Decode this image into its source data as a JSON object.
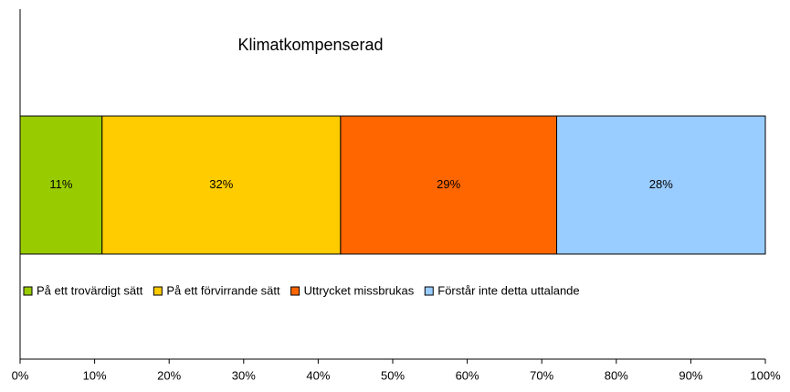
{
  "chart_data": {
    "type": "bar",
    "orientation": "horizontal",
    "stacked": true,
    "title": "Klimatkompenserad",
    "categories": [
      null
    ],
    "series": [
      {
        "name": "På ett trovärdigt sätt",
        "color": "#99cc00",
        "values": [
          11
        ],
        "value_labels": [
          "11%"
        ]
      },
      {
        "name": "På ett förvirrande sätt",
        "color": "#ffcc00",
        "values": [
          32
        ],
        "value_labels": [
          "32%"
        ]
      },
      {
        "name": "Uttrycket missbrukas",
        "color": "#ff6600",
        "values": [
          29
        ],
        "value_labels": [
          "29%"
        ]
      },
      {
        "name": "Förstår inte detta uttalande",
        "color": "#99ccff",
        "values": [
          28
        ],
        "value_labels": [
          "28%"
        ]
      }
    ],
    "xlim": [
      0,
      100
    ],
    "xticks": [
      {
        "value": 0,
        "label": "0%"
      },
      {
        "value": 10,
        "label": "10%"
      },
      {
        "value": 20,
        "label": "20%"
      },
      {
        "value": 30,
        "label": "30%"
      },
      {
        "value": 40,
        "label": "40%"
      },
      {
        "value": 50,
        "label": "50%"
      },
      {
        "value": 60,
        "label": "60%"
      },
      {
        "value": 70,
        "label": "70%"
      },
      {
        "value": 80,
        "label": "80%"
      },
      {
        "value": 90,
        "label": "90%"
      },
      {
        "value": 100,
        "label": "100%"
      }
    ],
    "legend": "inside-bottom"
  }
}
